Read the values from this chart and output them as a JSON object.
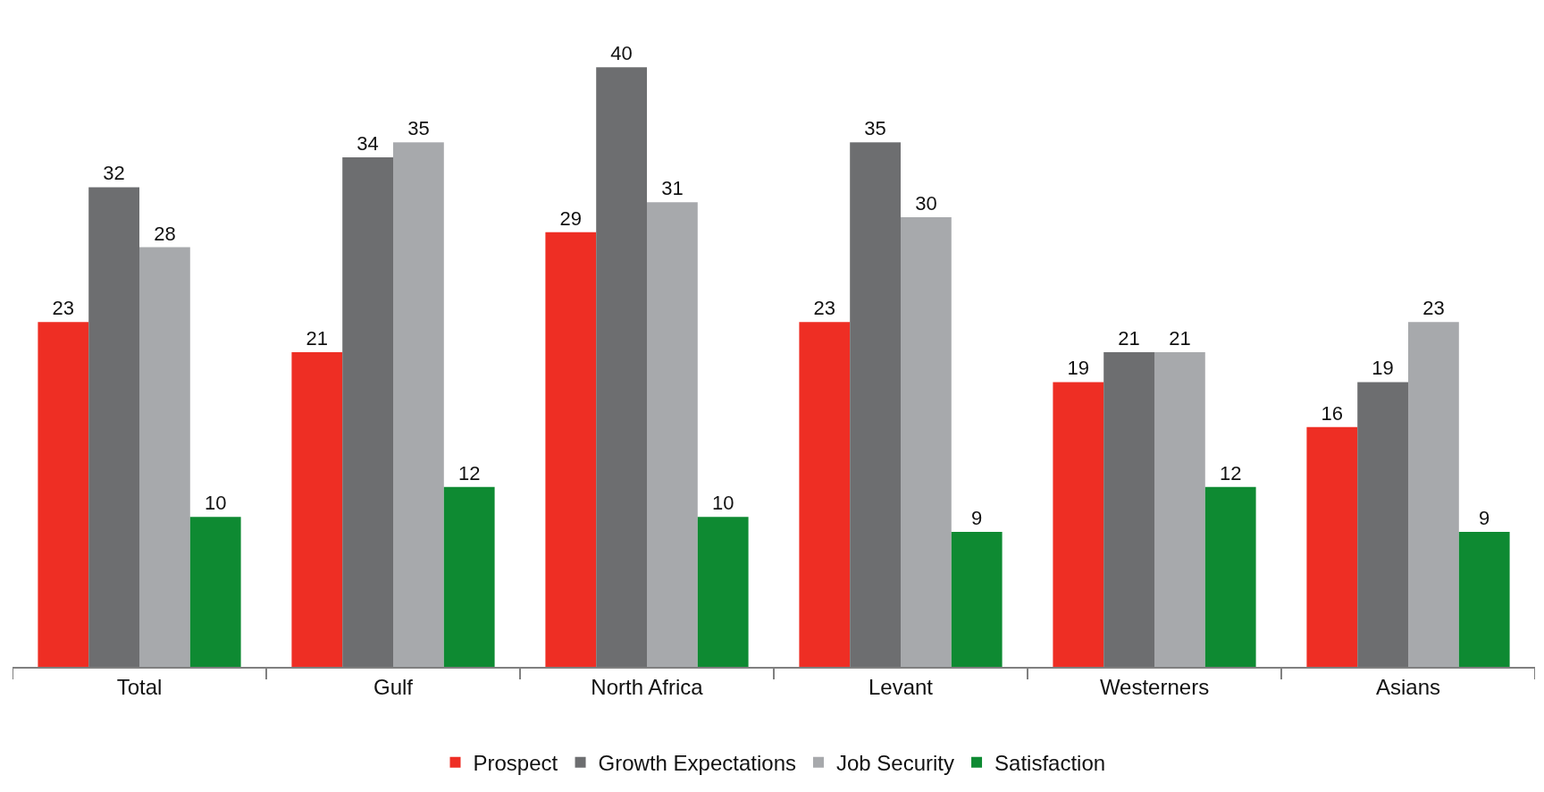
{
  "chart_data": {
    "type": "bar",
    "categories": [
      "Total",
      "Gulf",
      "North Africa",
      "Levant",
      "Westerners",
      "Asians"
    ],
    "series": [
      {
        "name": "Prospect",
        "color": "#ee2e24",
        "values": [
          23,
          21,
          29,
          23,
          19,
          16
        ]
      },
      {
        "name": "Growth Expectations",
        "color": "#6d6e70",
        "values": [
          32,
          34,
          40,
          35,
          21,
          19
        ]
      },
      {
        "name": "Job Security",
        "color": "#a7a9ac",
        "values": [
          28,
          35,
          31,
          30,
          21,
          23
        ]
      },
      {
        "name": "Satisfaction",
        "color": "#0e8a32",
        "values": [
          10,
          12,
          10,
          9,
          12,
          9
        ]
      }
    ],
    "data_labels": true,
    "legend": "bottom",
    "tick_labels": "x"
  }
}
